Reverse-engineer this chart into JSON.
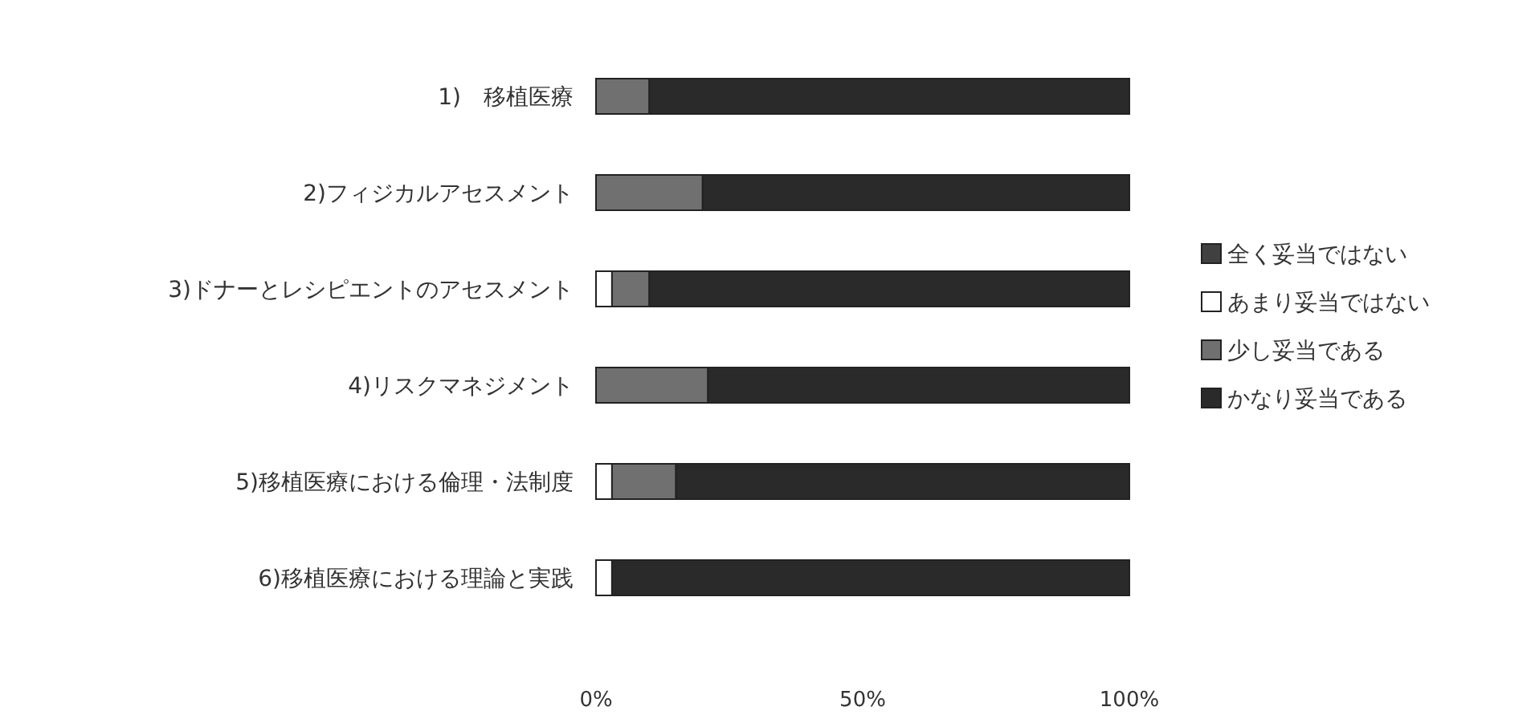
{
  "chart_data": {
    "type": "bar",
    "orientation": "horizontal",
    "stacked": true,
    "categories": [
      "1)　移植医療",
      "2)フィジカルアセスメント",
      "3)ドナーとレシピエントのアセスメント",
      "4)リスクマネジメント",
      "5)移植医療における倫理・法制度",
      "6)移植医療における理論と実践"
    ],
    "series": [
      {
        "name": "全く妥当ではない",
        "color": "#404040",
        "values": [
          0,
          0,
          0,
          0,
          0,
          0
        ]
      },
      {
        "name": "あまり妥当ではない",
        "color": "#ffffff",
        "values": [
          0,
          0,
          3,
          0,
          3,
          3
        ]
      },
      {
        "name": "少し妥当である",
        "color": "#707070",
        "values": [
          10,
          20,
          7,
          21,
          12,
          0
        ]
      },
      {
        "name": "かなり妥当である",
        "color": "#2a2a2a",
        "values": [
          90,
          80,
          90,
          79,
          85,
          97
        ]
      }
    ],
    "xlim": [
      0,
      100
    ],
    "xticks": [
      {
        "value": 0,
        "label": "0%"
      },
      {
        "value": 50,
        "label": "50%"
      },
      {
        "value": 100,
        "label": "100%"
      }
    ],
    "legend": "right"
  }
}
